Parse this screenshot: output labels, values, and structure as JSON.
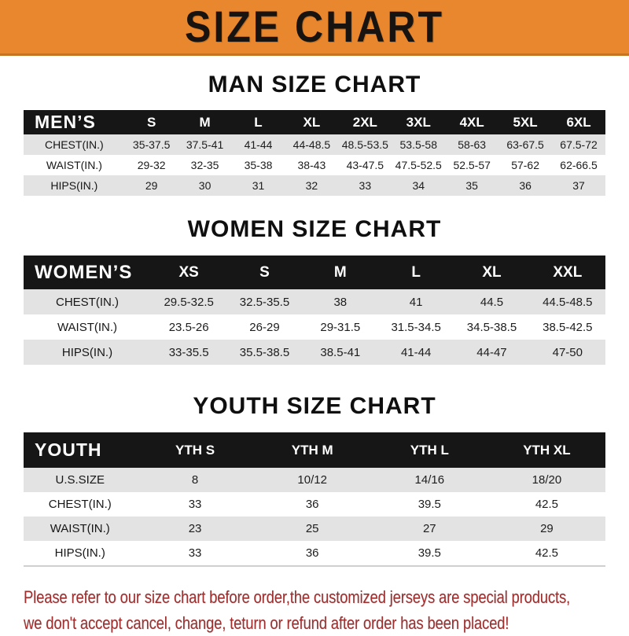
{
  "banner": {
    "title": "SIZE CHART",
    "bg_color": "#e8872d",
    "text_color": "#171310"
  },
  "sections": [
    {
      "heading": "MAN SIZE CHART",
      "header_label": "MEN’S",
      "columns": [
        "S",
        "M",
        "L",
        "XL",
        "2XL",
        "3XL",
        "4XL",
        "5XL",
        "6XL"
      ],
      "rows": [
        {
          "label": "CHEST(IN.)",
          "values": [
            "35-37.5",
            "37.5-41",
            "41-44",
            "44-48.5",
            "48.5-53.5",
            "53.5-58",
            "58-63",
            "63-67.5",
            "67.5-72"
          ]
        },
        {
          "label": "WAIST(IN.)",
          "values": [
            "29-32",
            "32-35",
            "35-38",
            "38-43",
            "43-47.5",
            "47.5-52.5",
            "52.5-57",
            "57-62",
            "62-66.5"
          ]
        },
        {
          "label": "HIPS(IN.)",
          "values": [
            "29",
            "30",
            "31",
            "32",
            "33",
            "34",
            "35",
            "36",
            "37"
          ]
        }
      ]
    },
    {
      "heading": "WOMEN SIZE CHART",
      "header_label": "WOMEN’S",
      "columns": [
        "XS",
        "S",
        "M",
        "L",
        "XL",
        "XXL"
      ],
      "rows": [
        {
          "label": "CHEST(IN.)",
          "values": [
            "29.5-32.5",
            "32.5-35.5",
            "38",
            "41",
            "44.5",
            "44.5-48.5"
          ]
        },
        {
          "label": "WAIST(IN.)",
          "values": [
            "23.5-26",
            "26-29",
            "29-31.5",
            "31.5-34.5",
            "34.5-38.5",
            "38.5-42.5"
          ]
        },
        {
          "label": "HIPS(IN.)",
          "values": [
            "33-35.5",
            "35.5-38.5",
            "38.5-41",
            "41-44",
            "44-47",
            "47-50"
          ]
        }
      ]
    },
    {
      "heading": "YOUTH SIZE CHART",
      "header_label": "YOUTH",
      "columns": [
        "YTH S",
        "YTH M",
        "YTH L",
        "YTH XL"
      ],
      "rows": [
        {
          "label": "U.S.SIZE",
          "values": [
            "8",
            "10/12",
            "14/16",
            "18/20"
          ]
        },
        {
          "label": "CHEST(IN.)",
          "values": [
            "33",
            "36",
            "39.5",
            "42.5"
          ]
        },
        {
          "label": "WAIST(IN.)",
          "values": [
            "23",
            "25",
            "27",
            "29"
          ]
        },
        {
          "label": "HIPS(IN.)",
          "values": [
            "33",
            "36",
            "39.5",
            "42.5"
          ]
        }
      ]
    }
  ],
  "footer": {
    "line1": "Please refer to our size chart before order,the customized jerseys are special products,",
    "line2": "we don't accept cancel, change, teturn or refund after order has been placed!",
    "text_color": "#9e2f2f"
  },
  "colors": {
    "header_bar_bg": "#161616",
    "header_bar_text": "#ffffff",
    "striped_row_bg": "#e3e3e3"
  }
}
